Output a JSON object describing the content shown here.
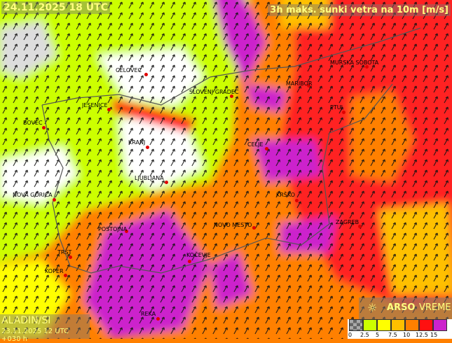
{
  "header": {
    "run_time": "24.11.2025 18 UTC",
    "variable": "3h maks. sunki vetra na 10m [m/s]"
  },
  "model": {
    "name": "ALADIN/SI",
    "init": "23.11.2025 12 UTC +030 h"
  },
  "brand": {
    "name_bold": "ARSO",
    "name_light": "VREME",
    "icon": "sun-icon"
  },
  "legend": {
    "labels": [
      "0",
      "2.5",
      "5",
      "7.5",
      "10",
      "12.5",
      "15"
    ],
    "colors": [
      "#888888",
      "#ccff00",
      "#ffff00",
      "#ffc000",
      "#ff8000",
      "#ff1010",
      "#cc22cc"
    ]
  },
  "cities": [
    {
      "name": "CELOVEC"
    },
    {
      "name": "SLOVENJ GRADEC"
    },
    {
      "name": "MARIBOR"
    },
    {
      "name": "MURSKA SOBOTA"
    },
    {
      "name": "PTUJ"
    },
    {
      "name": "JESENICE"
    },
    {
      "name": "BOVEC"
    },
    {
      "name": "KRANJ"
    },
    {
      "name": "CELJE"
    },
    {
      "name": "LJUBLJANA"
    },
    {
      "name": "NOVA GORICA"
    },
    {
      "name": "KRŠKO"
    },
    {
      "name": "POSTOJNA"
    },
    {
      "name": "NOVO MESTO"
    },
    {
      "name": "ZAGREB"
    },
    {
      "name": "TRST"
    },
    {
      "name": "KOČEVJE"
    },
    {
      "name": "KOPER"
    },
    {
      "name": "REKA"
    }
  ]
}
